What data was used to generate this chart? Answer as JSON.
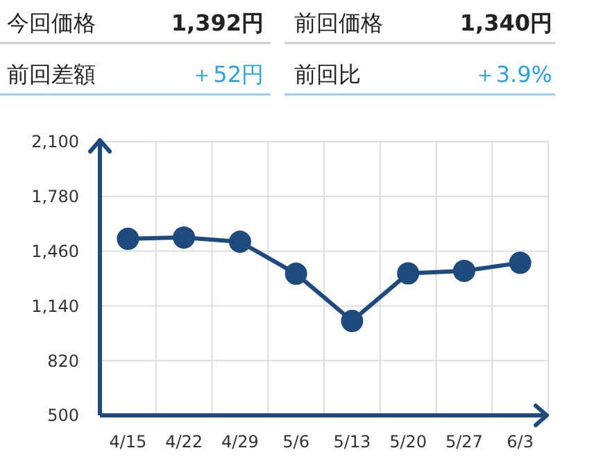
{
  "chart_data": [
    {
      "type": "other",
      "annotations": [
        "今回価格",
        "1,392円",
        "前回価格",
        "1,340円",
        "前回差額",
        "＋52円",
        "前回比",
        "＋3.9%"
      ]
    },
    {
      "type": "line",
      "categories": [
        "4/15",
        "4/22",
        "4/29",
        "5/6",
        "5/13",
        "5/20",
        "5/27",
        "6/3"
      ],
      "series": [
        {
          "color": "#1f4a7e",
          "values": [
            1532,
            1540,
            1515,
            1328,
            1052,
            1330,
            1345,
            1392
          ]
        }
      ],
      "ylim": [
        500,
        2100
      ],
      "yticks": [
        {
          "value": 500,
          "label": "500"
        },
        {
          "value": 820,
          "label": "820"
        },
        {
          "value": 1140,
          "label": "1,140"
        },
        {
          "value": 1460,
          "label": "1,460"
        },
        {
          "value": 1780,
          "label": "1,780"
        },
        {
          "value": 2100,
          "label": "2,100"
        }
      ],
      "grid": true,
      "marker": "circle",
      "line_style": "solid"
    }
  ]
}
